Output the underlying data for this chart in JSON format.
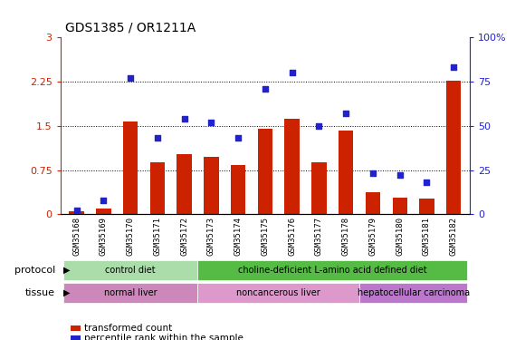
{
  "title": "GDS1385 / OR1211A",
  "samples": [
    "GSM35168",
    "GSM35169",
    "GSM35170",
    "GSM35171",
    "GSM35172",
    "GSM35173",
    "GSM35174",
    "GSM35175",
    "GSM35176",
    "GSM35177",
    "GSM35178",
    "GSM35179",
    "GSM35180",
    "GSM35181",
    "GSM35182"
  ],
  "transformed_count": [
    0.05,
    0.1,
    1.58,
    0.88,
    1.02,
    0.97,
    0.83,
    1.45,
    1.62,
    0.88,
    1.42,
    0.38,
    0.28,
    0.27,
    2.27
  ],
  "percentile_rank": [
    2,
    8,
    77,
    43,
    54,
    52,
    43,
    71,
    80,
    50,
    57,
    23,
    22,
    18,
    83
  ],
  "left_ylim": [
    0,
    3
  ],
  "right_ylim": [
    0,
    100
  ],
  "left_yticks": [
    0,
    0.75,
    1.5,
    2.25,
    3
  ],
  "right_yticks": [
    0,
    25,
    50,
    75,
    100
  ],
  "left_yticklabels": [
    "0",
    "0.75",
    "1.5",
    "2.25",
    "3"
  ],
  "right_yticklabels": [
    "0",
    "25",
    "50",
    "75",
    "100%"
  ],
  "bar_color": "#cc2200",
  "marker_color": "#2222cc",
  "protocol_groups": [
    {
      "label": "control diet",
      "start": 0,
      "end": 4,
      "color": "#aaddaa"
    },
    {
      "label": "choline-deficient L-amino acid defined diet",
      "start": 5,
      "end": 14,
      "color": "#55bb44"
    }
  ],
  "tissue_groups": [
    {
      "label": "normal liver",
      "start": 0,
      "end": 4,
      "color": "#cc88bb"
    },
    {
      "label": "noncancerous liver",
      "start": 5,
      "end": 10,
      "color": "#dd99cc"
    },
    {
      "label": "hepatocellular carcinoma",
      "start": 11,
      "end": 14,
      "color": "#bb77cc"
    }
  ],
  "legend_items": [
    {
      "label": "transformed count",
      "color": "#cc2200"
    },
    {
      "label": "percentile rank within the sample",
      "color": "#2222cc"
    }
  ],
  "protocol_label": "protocol",
  "tissue_label": "tissue",
  "background_color": "#ffffff",
  "tick_label_bg": "#cccccc",
  "hgrid_yticks": [
    0.75,
    1.5,
    2.25
  ]
}
